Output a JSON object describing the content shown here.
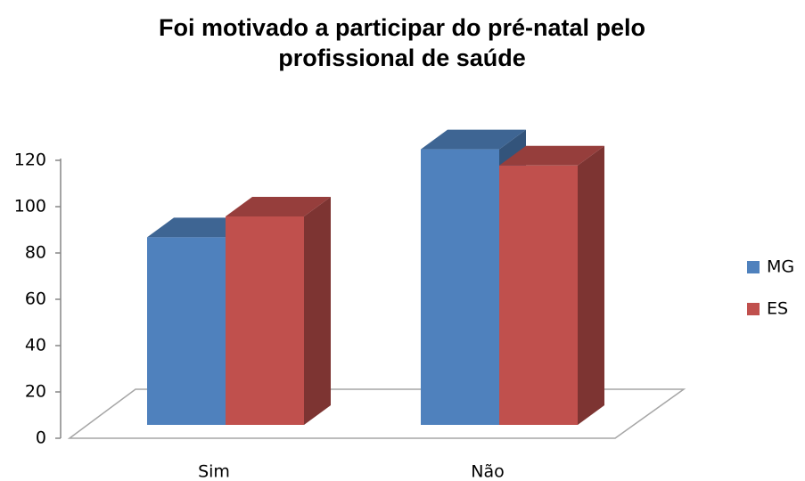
{
  "chart_data": {
    "type": "bar3d",
    "title": "Foi motivado a participar do pré-natal pelo profissional de saúde",
    "categories": [
      "Sim",
      "Não"
    ],
    "series": [
      {
        "name": "MG",
        "color": "#4f81bd",
        "values": [
          81,
          119
        ]
      },
      {
        "name": "ES",
        "color": "#c0504d",
        "values": [
          90,
          112
        ]
      }
    ],
    "ylim": [
      0,
      120
    ],
    "yticks": [
      0,
      20,
      40,
      60,
      80,
      100,
      120
    ],
    "legend": "right"
  }
}
